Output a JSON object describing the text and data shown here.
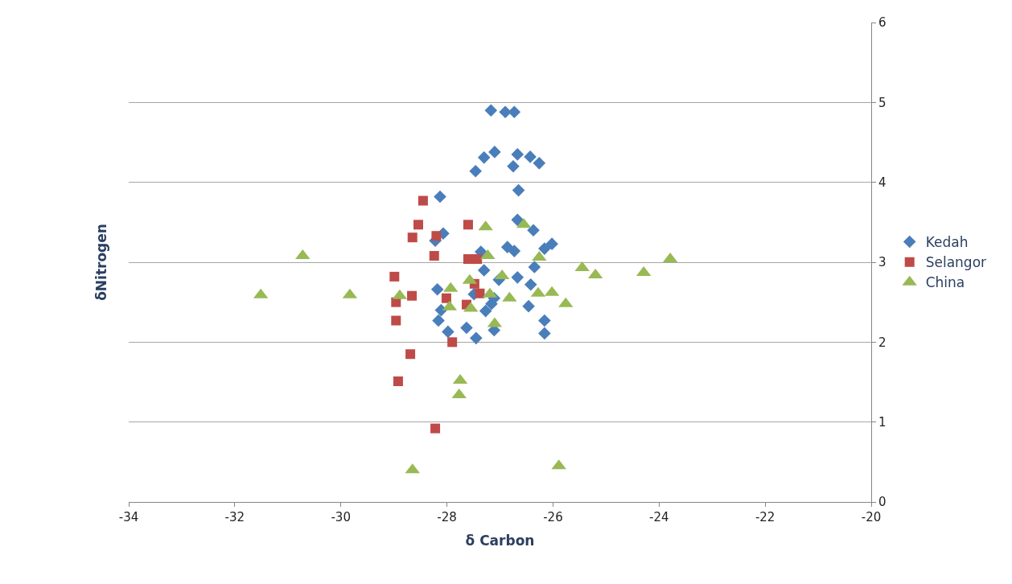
{
  "chart_data": {
    "type": "scatter",
    "xlabel": "δ Carbon",
    "ylabel": "δNitrogen",
    "xlim": [
      -34,
      -20
    ],
    "xticks": [
      -34,
      -32,
      -30,
      -28,
      -26,
      -24,
      -22,
      -20
    ],
    "ylim": [
      0,
      6
    ],
    "yticks": [
      0,
      1,
      2,
      3,
      4,
      5,
      6
    ],
    "grid": "y",
    "legend": "right",
    "series": [
      {
        "name": "Kedah",
        "color": "#4a7ebb",
        "marker": "diamond",
        "x": [
          -27.17,
          -26.9,
          -26.73,
          -27.3,
          -27.1,
          -27.46,
          -26.67,
          -26.75,
          -26.43,
          -26.26,
          -26.65,
          -28.13,
          -26.67,
          -26.37,
          -28.07,
          -28.22,
          -27.36,
          -26.86,
          -26.73,
          -26.16,
          -26.02,
          -27.3,
          -26.35,
          -26.67,
          -27.02,
          -26.42,
          -28.18,
          -28.11,
          -27.16,
          -28.16,
          -27.98,
          -27.63,
          -27.45,
          -27.11,
          -27.27,
          -27.11,
          -26.46,
          -26.16,
          -26.16,
          -27.49
        ],
        "values": [
          4.9,
          4.88,
          4.88,
          4.31,
          4.38,
          4.14,
          4.35,
          4.2,
          4.32,
          4.24,
          3.9,
          3.82,
          3.53,
          3.4,
          3.36,
          3.27,
          3.13,
          3.19,
          3.14,
          3.17,
          3.23,
          2.9,
          2.94,
          2.81,
          2.78,
          2.72,
          2.66,
          2.4,
          2.48,
          2.27,
          2.13,
          2.18,
          2.05,
          2.15,
          2.39,
          2.55,
          2.45,
          2.27,
          2.11,
          2.6
        ]
      },
      {
        "name": "Selangor",
        "color": "#be4b48",
        "marker": "square",
        "x": [
          -28.45,
          -28.54,
          -28.65,
          -28.2,
          -27.6,
          -28.24,
          -27.6,
          -27.43,
          -28.99,
          -28.66,
          -28.96,
          -28.96,
          -28.69,
          -28.92,
          -27.9,
          -28.22,
          -28.01,
          -27.63,
          -27.48,
          -27.38
        ],
        "values": [
          3.77,
          3.47,
          3.31,
          3.33,
          3.47,
          3.08,
          3.04,
          3.04,
          2.82,
          2.58,
          2.5,
          2.27,
          1.85,
          1.51,
          2.0,
          0.92,
          2.55,
          2.47,
          2.73,
          2.61
        ]
      },
      {
        "name": "China",
        "color": "#98b954",
        "marker": "triangle",
        "x": [
          -31.51,
          -30.72,
          -29.83,
          -28.89,
          -28.65,
          -27.93,
          -27.95,
          -27.75,
          -27.77,
          -27.57,
          -27.55,
          -27.27,
          -27.23,
          -27.19,
          -27.1,
          -26.96,
          -26.82,
          -26.55,
          -26.26,
          -26.28,
          -26.02,
          -25.76,
          -25.89,
          -25.45,
          -25.2,
          -24.29,
          -23.79
        ],
        "values": [
          2.59,
          3.08,
          2.59,
          2.58,
          0.4,
          2.67,
          2.44,
          1.52,
          1.34,
          2.77,
          2.42,
          3.44,
          3.08,
          2.6,
          2.23,
          2.83,
          2.55,
          3.47,
          3.06,
          2.61,
          2.62,
          2.48,
          0.45,
          2.93,
          2.84,
          2.87,
          3.04
        ]
      }
    ]
  }
}
